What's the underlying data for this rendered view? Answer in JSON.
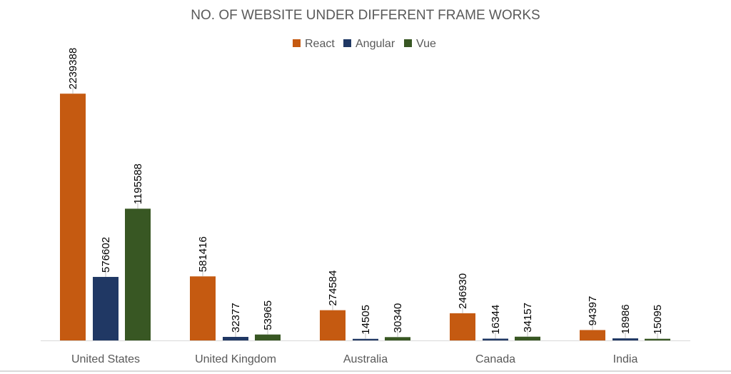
{
  "chart_data": {
    "type": "bar",
    "title": "NO. OF WEBSITE UNDER DIFFERENT FRAME WORKS",
    "categories": [
      "United States",
      "United Kingdom",
      "Australia",
      "Canada",
      "India"
    ],
    "series": [
      {
        "name": "React",
        "color": "#c55a11",
        "values": [
          2239388,
          581416,
          274584,
          246930,
          94397
        ]
      },
      {
        "name": "Angular",
        "color": "#203864",
        "values": [
          576602,
          32377,
          14505,
          16344,
          18986
        ]
      },
      {
        "name": "Vue",
        "color": "#385723",
        "values": [
          1195588,
          53965,
          30340,
          34157,
          15095
        ]
      }
    ],
    "xlabel": "",
    "ylabel": "",
    "ylim": [
      0,
      2500000
    ],
    "grid": false,
    "legend_position": "top-center",
    "data_labels": true
  }
}
